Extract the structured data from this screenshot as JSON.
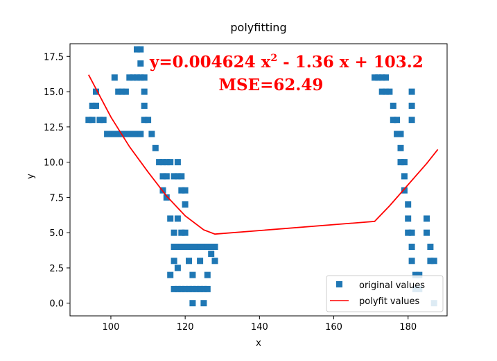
{
  "chart_data": {
    "type": "scatter",
    "title": "polyfitting",
    "xlabel": "x",
    "ylabel": "y",
    "xlim": [
      89,
      190.5
    ],
    "ylim": [
      -0.9,
      18.4
    ],
    "x_ticks": [
      100,
      120,
      140,
      160,
      180
    ],
    "x_tick_labels": [
      "100",
      "120",
      "140",
      "160",
      "180"
    ],
    "y_ticks": [
      0.0,
      2.5,
      5.0,
      7.5,
      10.0,
      12.5,
      15.0,
      17.5
    ],
    "y_tick_labels": [
      "0.0",
      "2.5",
      "5.0",
      "7.5",
      "10.0",
      "12.5",
      "15.0",
      "17.5"
    ],
    "grid": false,
    "legend_position": "bottom-right",
    "annotation": {
      "equation_prefix": "y=0.004624 x",
      "equation_exponent": "2",
      "equation_suffix": " - 1.36 x + 103.2",
      "mse": "MSE=62.49",
      "color": "#ff0000"
    },
    "series": [
      {
        "name": "original values",
        "kind": "scatter",
        "marker": "square",
        "color": "#1f77b4",
        "points": [
          [
            94,
            13
          ],
          [
            95,
            14
          ],
          [
            95,
            13
          ],
          [
            96,
            14
          ],
          [
            96,
            15
          ],
          [
            97,
            13
          ],
          [
            98,
            13
          ],
          [
            99,
            12
          ],
          [
            100,
            12
          ],
          [
            101,
            12
          ],
          [
            101,
            16
          ],
          [
            102,
            12
          ],
          [
            102,
            15
          ],
          [
            103,
            12
          ],
          [
            103,
            15
          ],
          [
            104,
            12
          ],
          [
            104,
            15
          ],
          [
            105,
            12
          ],
          [
            105,
            16
          ],
          [
            106,
            12
          ],
          [
            106,
            16
          ],
          [
            107,
            12
          ],
          [
            107,
            16
          ],
          [
            107,
            18
          ],
          [
            108,
            12
          ],
          [
            108,
            16
          ],
          [
            108,
            18
          ],
          [
            108,
            17
          ],
          [
            109,
            15
          ],
          [
            109,
            14
          ],
          [
            109,
            16
          ],
          [
            109,
            13
          ],
          [
            110,
            13
          ],
          [
            111,
            12
          ],
          [
            112,
            11
          ],
          [
            113,
            10
          ],
          [
            114,
            10
          ],
          [
            114,
            9
          ],
          [
            114,
            8
          ],
          [
            115,
            10
          ],
          [
            115,
            9
          ],
          [
            115,
            7.5
          ],
          [
            116,
            10
          ],
          [
            116,
            6
          ],
          [
            116,
            2
          ],
          [
            117,
            9
          ],
          [
            117,
            5
          ],
          [
            117,
            4
          ],
          [
            117,
            3
          ],
          [
            117,
            1
          ],
          [
            118,
            10
          ],
          [
            118,
            9
          ],
          [
            118,
            6
          ],
          [
            118,
            4
          ],
          [
            118,
            2.5
          ],
          [
            118,
            1
          ],
          [
            119,
            9
          ],
          [
            119,
            8
          ],
          [
            119,
            5
          ],
          [
            119,
            4
          ],
          [
            119,
            1
          ],
          [
            120,
            8
          ],
          [
            120,
            7
          ],
          [
            120,
            5
          ],
          [
            120,
            4
          ],
          [
            120,
            1
          ],
          [
            121,
            4
          ],
          [
            121,
            3
          ],
          [
            121,
            1
          ],
          [
            122,
            4
          ],
          [
            122,
            2
          ],
          [
            122,
            1
          ],
          [
            122,
            0
          ],
          [
            123,
            4
          ],
          [
            123,
            1
          ],
          [
            124,
            4
          ],
          [
            124,
            3
          ],
          [
            124,
            1
          ],
          [
            125,
            4
          ],
          [
            125,
            1
          ],
          [
            125,
            0
          ],
          [
            126,
            4
          ],
          [
            126,
            2
          ],
          [
            126,
            1
          ],
          [
            127,
            4
          ],
          [
            127,
            3.5
          ],
          [
            128,
            4
          ],
          [
            128,
            3
          ],
          [
            171,
            16
          ],
          [
            172,
            16
          ],
          [
            173,
            16
          ],
          [
            173,
            15
          ],
          [
            174,
            16
          ],
          [
            174,
            15
          ],
          [
            175,
            15
          ],
          [
            176,
            14
          ],
          [
            176,
            13
          ],
          [
            177,
            13
          ],
          [
            177,
            12
          ],
          [
            178,
            12
          ],
          [
            178,
            11
          ],
          [
            178,
            10
          ],
          [
            179,
            10
          ],
          [
            179,
            9
          ],
          [
            179,
            8
          ],
          [
            180,
            7
          ],
          [
            180,
            6
          ],
          [
            180,
            5
          ],
          [
            181,
            15
          ],
          [
            181,
            14
          ],
          [
            181,
            13
          ],
          [
            181,
            5
          ],
          [
            181,
            4
          ],
          [
            181,
            3
          ],
          [
            182,
            2
          ],
          [
            182,
            1
          ],
          [
            183,
            2
          ],
          [
            183,
            1
          ],
          [
            185,
            6
          ],
          [
            185,
            5
          ],
          [
            186,
            4
          ],
          [
            186,
            3
          ],
          [
            187,
            3
          ],
          [
            187,
            0
          ]
        ]
      },
      {
        "name": "polyfit values",
        "kind": "line",
        "color": "#ff0000",
        "x": [
          94,
          100,
          105,
          110,
          115,
          120,
          125,
          128,
          171,
          175,
          180,
          185,
          188
        ],
        "y": [
          16.2,
          13.2,
          11.1,
          9.3,
          7.6,
          6.2,
          5.2,
          4.9,
          5.8,
          6.9,
          8.4,
          9.9,
          10.9
        ]
      }
    ]
  }
}
